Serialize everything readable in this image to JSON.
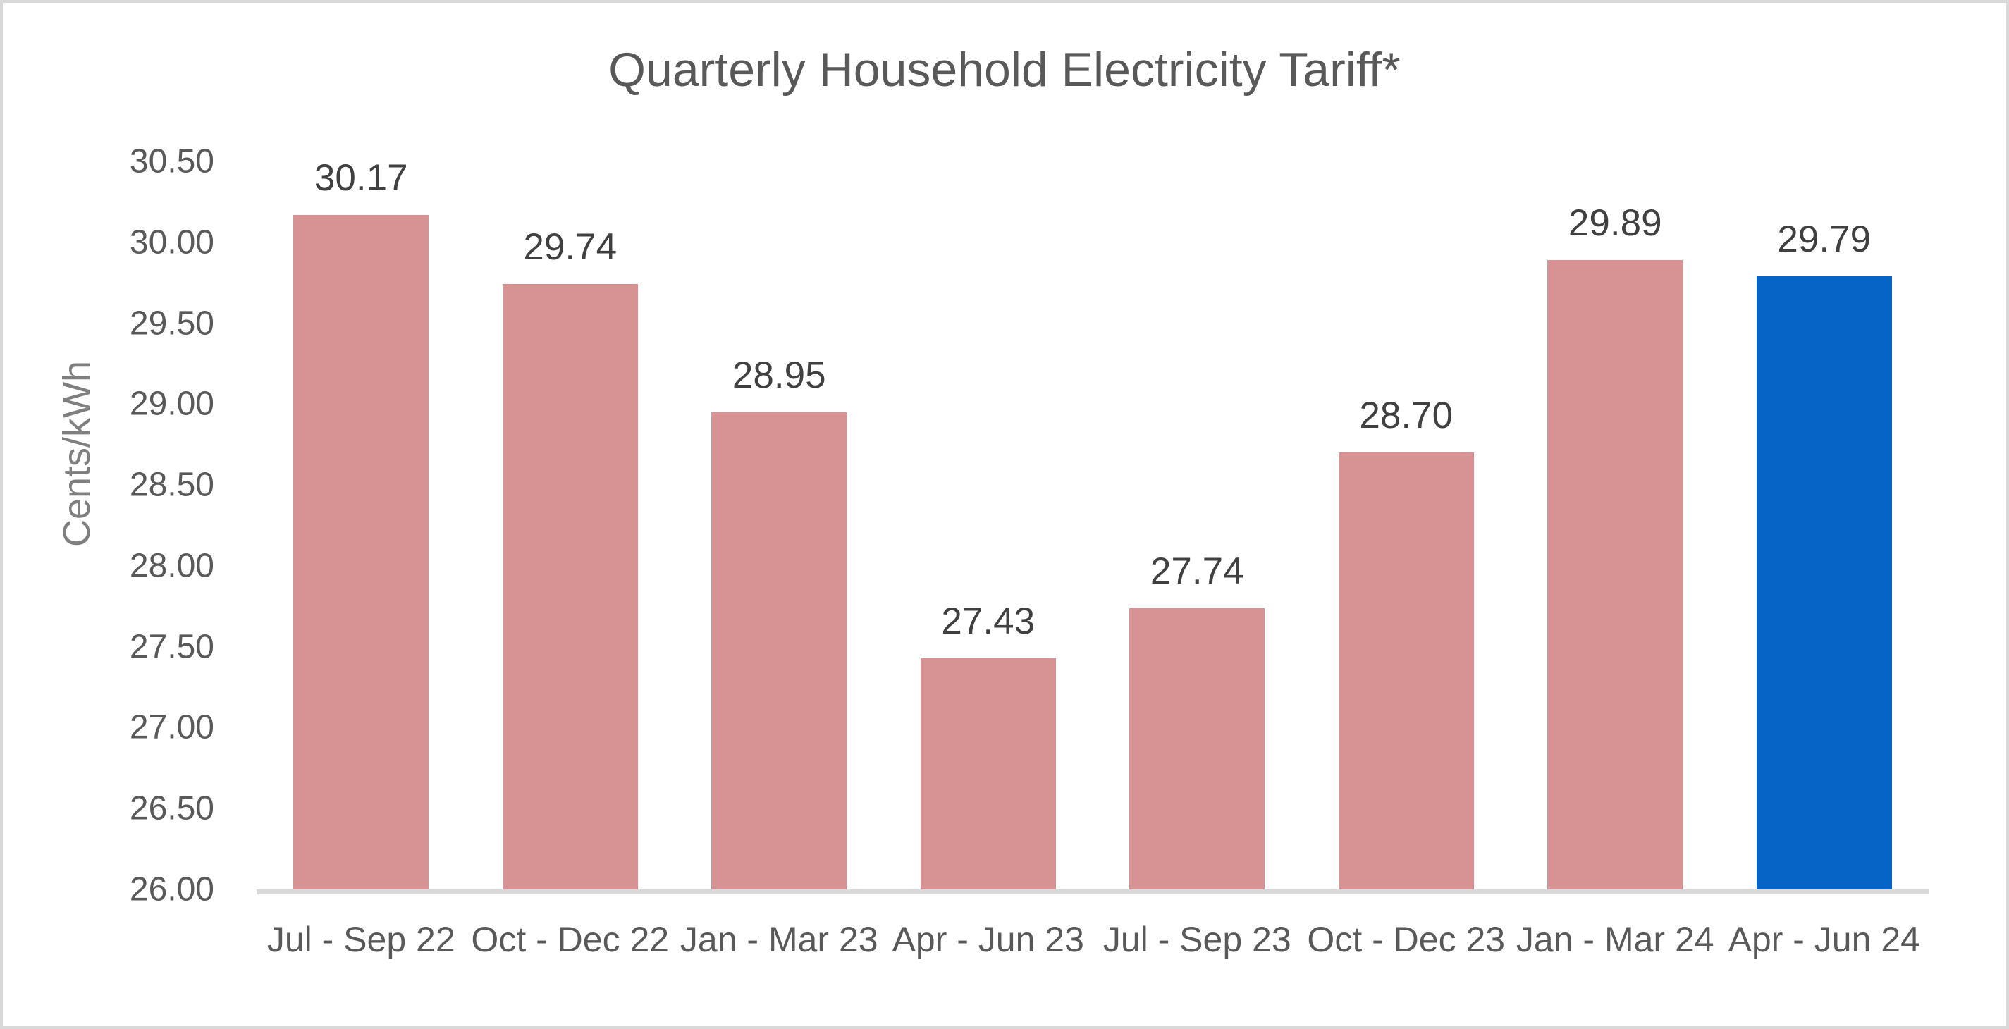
{
  "chart_data": {
    "type": "bar",
    "title": "Quarterly Household Electricity Tariff*",
    "xlabel": "",
    "ylabel": "Cents/kWh",
    "categories": [
      "Jul - Sep 22",
      "Oct - Dec 22",
      "Jan - Mar 23",
      "Apr - Jun 23",
      "Jul - Sep 23",
      "Oct - Dec 23",
      "Jan - Mar 24",
      "Apr - Jun 24"
    ],
    "values": [
      30.17,
      29.74,
      28.95,
      27.43,
      27.74,
      28.7,
      29.89,
      29.79
    ],
    "value_labels": [
      "30.17",
      "29.74",
      "28.95",
      "27.43",
      "27.74",
      "28.70",
      "29.89",
      "29.79"
    ],
    "ylim": [
      26.0,
      30.5
    ],
    "ytick_step": 0.5,
    "yticks": [
      "30.50",
      "30.00",
      "29.50",
      "29.00",
      "28.50",
      "28.00",
      "27.50",
      "27.00",
      "26.50",
      "26.00"
    ],
    "grid": false,
    "legend": "none",
    "highlight_index": 7,
    "colors": {
      "bar_default": "#d79394",
      "bar_highlight": "#0564c6",
      "axis_line": "#d9d9d9",
      "tick_text": "#595959",
      "title_text": "#595959",
      "data_label_text": "#404040",
      "axis_title_text": "#7f7f7f"
    }
  }
}
